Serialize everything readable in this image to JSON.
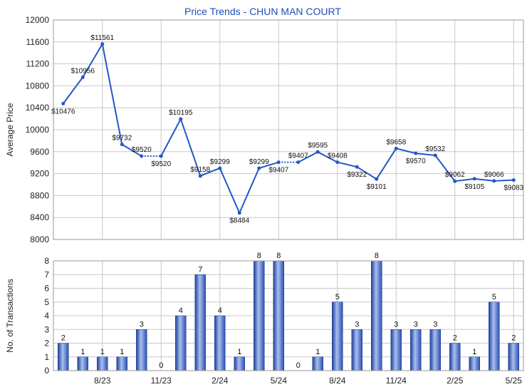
{
  "chart_data": [
    {
      "type": "line",
      "title": "Price Trends - CHUN MAN COURT",
      "ylabel": "Average Price",
      "ylim": [
        8000,
        12000
      ],
      "yticks": [
        8000,
        8400,
        8800,
        9200,
        9600,
        10000,
        10400,
        10800,
        11200,
        11600,
        12000
      ],
      "grid": true,
      "line_color": "#2457c5",
      "points": [
        {
          "x": 0,
          "y": 10476,
          "label": "$10476",
          "pos": "below"
        },
        {
          "x": 1,
          "y": 10956,
          "label": "$10956",
          "pos": "above"
        },
        {
          "x": 2,
          "y": 11561,
          "label": "$11561",
          "pos": "above"
        },
        {
          "x": 3,
          "y": 9732,
          "label": "$9732",
          "pos": "above"
        },
        {
          "x": 4,
          "y": 9520,
          "label": "$9520",
          "pos": "above"
        },
        {
          "x": 5,
          "y": 9520,
          "label": "$9520",
          "pos": "below"
        },
        {
          "x": 6,
          "y": 10195,
          "label": "$10195",
          "pos": "above"
        },
        {
          "x": 7,
          "y": 9158,
          "label": "$9158",
          "pos": "above"
        },
        {
          "x": 8,
          "y": 9299,
          "label": "$9299",
          "pos": "above"
        },
        {
          "x": 9,
          "y": 8484,
          "label": "$8484",
          "pos": "below"
        },
        {
          "x": 10,
          "y": 9299,
          "label": "$9299",
          "pos": "above"
        },
        {
          "x": 11,
          "y": 9407,
          "label": "$9407",
          "pos": "below"
        },
        {
          "x": 12,
          "y": 9407,
          "label": "$9407",
          "pos": "above"
        },
        {
          "x": 13,
          "y": 9595,
          "label": "$9595",
          "pos": "above"
        },
        {
          "x": 14,
          "y": 9408,
          "label": "$9408",
          "pos": "above"
        },
        {
          "x": 15,
          "y": 9322,
          "label": "$9322",
          "pos": "below"
        },
        {
          "x": 16,
          "y": 9101,
          "label": "$9101",
          "pos": "below"
        },
        {
          "x": 17,
          "y": 9658,
          "label": "$9658",
          "pos": "above"
        },
        {
          "x": 18,
          "y": 9570,
          "label": "$9570",
          "pos": "below"
        },
        {
          "x": 19,
          "y": 9532,
          "label": "$9532",
          "pos": "above"
        },
        {
          "x": 20,
          "y": 9062,
          "label": "$9062",
          "pos": "above"
        },
        {
          "x": 21,
          "y": 9105,
          "label": "$9105",
          "pos": "below"
        },
        {
          "x": 22,
          "y": 9066,
          "label": "$9066",
          "pos": "above"
        },
        {
          "x": 23,
          "y": 9083,
          "label": "$9083",
          "pos": "below"
        }
      ],
      "dotted_segments": [
        [
          4,
          5
        ],
        [
          11,
          12
        ]
      ]
    },
    {
      "type": "bar",
      "ylabel": "No. of Transactions",
      "ylim": [
        0,
        8
      ],
      "yticks": [
        0,
        1,
        2,
        3,
        4,
        5,
        6,
        7,
        8
      ],
      "grid": true,
      "bar_color": "#3f68c9",
      "values": [
        2,
        1,
        1,
        1,
        3,
        0,
        4,
        7,
        4,
        1,
        8,
        8,
        0,
        1,
        5,
        3,
        8,
        3,
        3,
        3,
        2,
        1,
        5,
        2
      ],
      "x_tick_labels": [
        {
          "index": 2,
          "label": "8/23"
        },
        {
          "index": 5,
          "label": "11/23"
        },
        {
          "index": 8,
          "label": "2/24"
        },
        {
          "index": 11,
          "label": "5/24"
        },
        {
          "index": 14,
          "label": "8/24"
        },
        {
          "index": 17,
          "label": "11/24"
        },
        {
          "index": 20,
          "label": "2/25"
        },
        {
          "index": 23,
          "label": "5/25"
        }
      ]
    }
  ]
}
